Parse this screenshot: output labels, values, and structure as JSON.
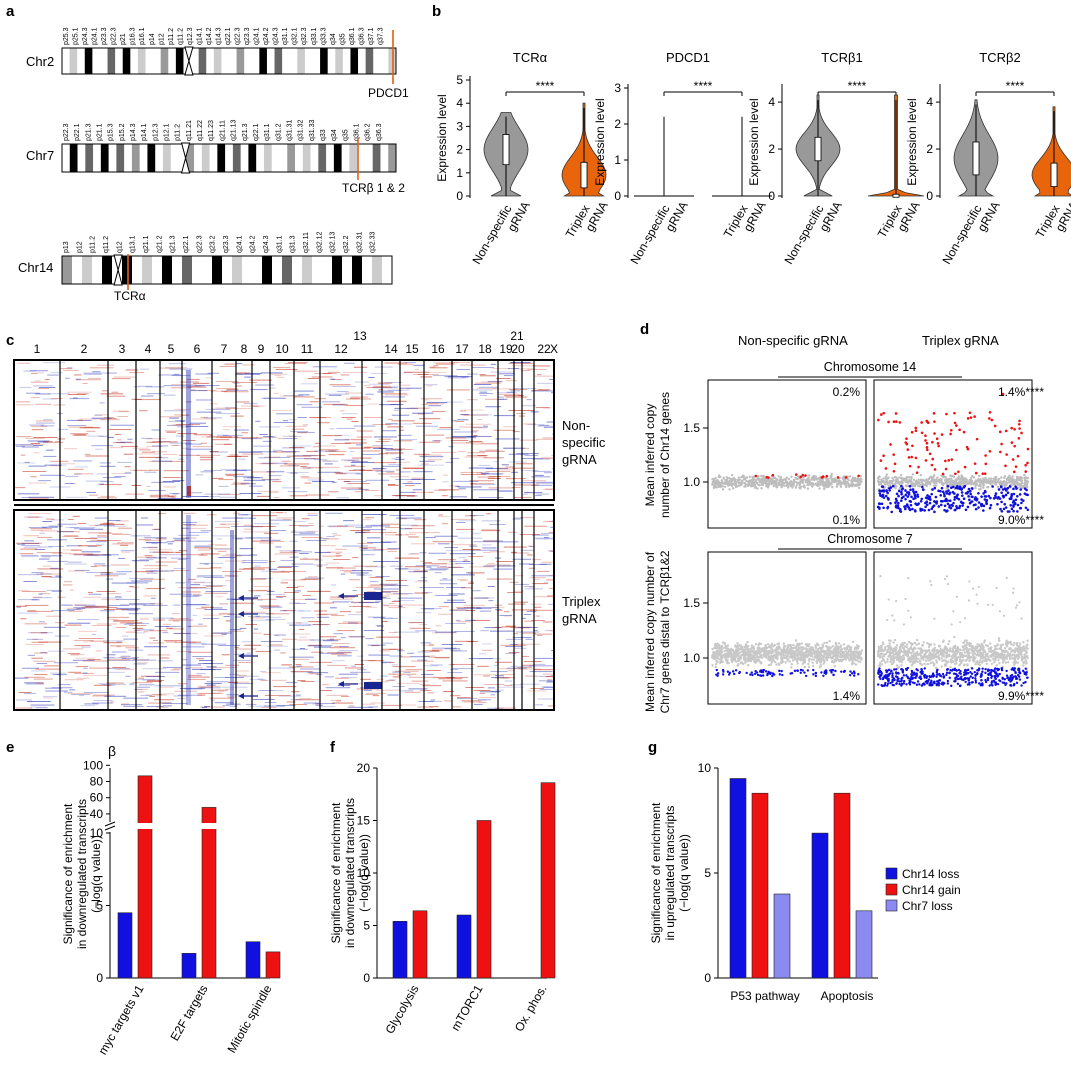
{
  "panels": {
    "a": {
      "label": "a",
      "chromosomes": [
        {
          "name": "Chr2",
          "annotation": "PDCD1",
          "bands": [
            "p25.3",
            "p25.1",
            "p24.3",
            "p24.1",
            "p23.3",
            "p22.3",
            "p21",
            "p16.3",
            "p16.1",
            "p14",
            "p12",
            "p11.2",
            "q11.2",
            "q12.3",
            "q14.1",
            "q14.2",
            "q14.3",
            "q22.1",
            "q22.3",
            "q23.3",
            "q24.1",
            "q24.2",
            "q24.3",
            "q31.1",
            "q32.1",
            "q32.3",
            "q33.1",
            "q33.3",
            "q34",
            "q35",
            "q36.1",
            "q36.3",
            "q37.1",
            "q37.3"
          ]
        },
        {
          "name": "Chr7",
          "annotation": "TCRβ 1 & 2",
          "bands": [
            "p22.3",
            "p22.1",
            "p21.3",
            "p21.1",
            "p15.3",
            "p15.2",
            "p14.3",
            "p14.1",
            "p12.3",
            "p12.1",
            "p11.2",
            "q11.21",
            "q11.22",
            "q11.23",
            "q21.11",
            "q21.13",
            "q21.3",
            "q22.1",
            "q31.1",
            "q31.2",
            "q31.31",
            "q31.32",
            "q31.33",
            "q33",
            "q34",
            "q35",
            "q36.1",
            "q36.2",
            "q36.3"
          ]
        },
        {
          "name": "Chr14",
          "annotation": "TCRα",
          "bands": [
            "p13",
            "p12",
            "p11.2",
            "q11.2",
            "q12",
            "q13.1",
            "q21.1",
            "q21.2",
            "q21.3",
            "q22.1",
            "q22.3",
            "q23.2",
            "q23.3",
            "q24.1",
            "q24.2",
            "q24.3",
            "q31.1",
            "q31.3",
            "q32.11",
            "q32.12",
            "q32.13",
            "q32.2",
            "q32.31",
            "q32.33"
          ]
        }
      ]
    },
    "b": {
      "label": "b",
      "y_label": "Expression level",
      "significance": "****",
      "categories": [
        "Non-specific gRNA",
        "Triplex gRNA"
      ],
      "subplots": [
        {
          "title": "TCRα",
          "yticks": [
            "0",
            "1",
            "2",
            "3",
            "4",
            "5"
          ]
        },
        {
          "title": "PDCD1",
          "yticks": [
            "0",
            "1",
            "2",
            "3"
          ]
        },
        {
          "title": "TCRβ1",
          "yticks": [
            "0",
            "2",
            "4"
          ]
        },
        {
          "title": "TCRβ2",
          "yticks": [
            "0",
            "2",
            "4"
          ]
        }
      ]
    },
    "c": {
      "label": "c",
      "chromosome_labels": [
        "1",
        "2",
        "3",
        "4",
        "5",
        "6",
        "7",
        "8",
        "9",
        "10",
        "11",
        "12",
        "13",
        "14",
        "15",
        "16",
        "17",
        "18",
        "19",
        "20",
        "21",
        "22",
        "X"
      ],
      "group_labels": [
        "Non-specific gRNA",
        "Triplex gRNA"
      ]
    },
    "d": {
      "label": "d",
      "column_labels": [
        "Non-specific gRNA",
        "Triplex gRNA"
      ],
      "top": {
        "title": "Chromosome 14",
        "y_label": "Mean inferred copy number of Chr14 genes",
        "yticks": [
          "1.0",
          "1.5"
        ],
        "pct_ns_gain": "0.2%",
        "pct_ns_loss": "0.1%",
        "pct_tx_gain": "1.4%****",
        "pct_tx_loss": "9.0%****"
      },
      "bottom": {
        "title": "Chromosome 7",
        "y_label": "Mean inferred copy number of Chr7 genes distal to TCRβ1&2",
        "yticks": [
          "1.0",
          "1.5"
        ],
        "pct_ns_loss": "1.4%",
        "pct_tx_loss": "9.9%****"
      }
    },
    "e": {
      "label": "e",
      "beta": "β"
    },
    "f": {
      "label": "f"
    },
    "g": {
      "label": "g"
    }
  },
  "chart_data": [
    {
      "type": "bar",
      "panel": "e",
      "ylabel": "Significance of enrichment in downregulated transcripts (−log(q value))",
      "categories": [
        "myc targets v1",
        "E2F targets",
        "Mitotic spindle"
      ],
      "series": [
        {
          "name": "Chr14 loss",
          "color": "#1010e0",
          "values": [
            4.5,
            1.7,
            2.5
          ]
        },
        {
          "name": "Chr14 gain",
          "color": "#ee1111",
          "values": [
            87,
            48,
            1.8
          ]
        }
      ],
      "axis_break": [
        10,
        30
      ],
      "yticks_lower": [
        "0",
        "5",
        "10"
      ],
      "yticks_upper": [
        "40",
        "60",
        "80",
        "100"
      ]
    },
    {
      "type": "bar",
      "panel": "f",
      "ylabel": "Significance of enrichment in downregulated transcripts (−log(q value))",
      "categories": [
        "Glycolysis",
        "mTORC1",
        "Ox. phos."
      ],
      "series": [
        {
          "name": "Chr14 loss",
          "color": "#1010e0",
          "values": [
            5.4,
            6.0,
            0
          ]
        },
        {
          "name": "Chr14 gain",
          "color": "#ee1111",
          "values": [
            6.4,
            15.0,
            18.6
          ]
        }
      ],
      "ylim": [
        0,
        20
      ],
      "yticks": [
        "0",
        "5",
        "10",
        "15",
        "20"
      ]
    },
    {
      "type": "bar",
      "panel": "g",
      "ylabel": "Significance of enrichment in upregulated transcripts (−log(q value))",
      "categories": [
        "P53 pathway",
        "Apoptosis"
      ],
      "series": [
        {
          "name": "Chr14 loss",
          "color": "#1010e0",
          "values": [
            9.5,
            6.9
          ]
        },
        {
          "name": "Chr14 gain",
          "color": "#ee1111",
          "values": [
            8.8,
            8.8
          ]
        },
        {
          "name": "Chr7 loss",
          "color": "#8a8af0",
          "values": [
            4.0,
            3.2
          ]
        }
      ],
      "ylim": [
        0,
        10
      ],
      "yticks": [
        "0",
        "5",
        "10"
      ],
      "legend": [
        "Chr14 loss",
        "Chr14 gain",
        "Chr7 loss"
      ]
    }
  ]
}
